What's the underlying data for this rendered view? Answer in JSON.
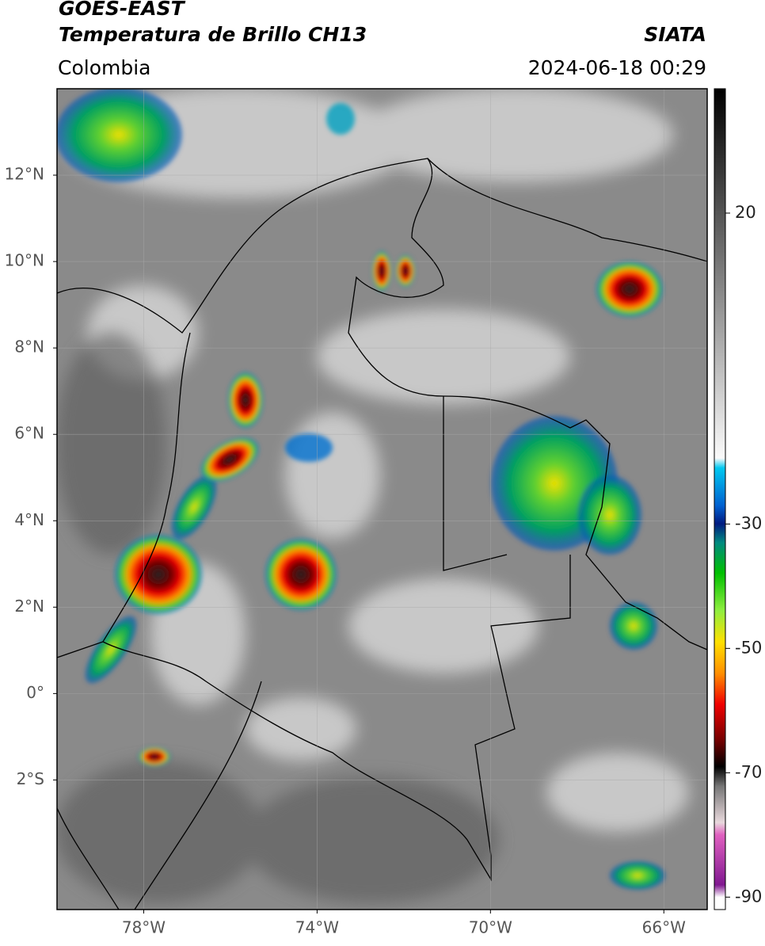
{
  "header": {
    "satellite": "GOES-EAST",
    "product": "Temperatura de Brillo CH13",
    "source": "SIATA",
    "region": "Colombia",
    "datetime": "2024-06-18 00:29"
  },
  "map": {
    "xlim": [
      -80,
      -65
    ],
    "ylim": [
      -5,
      14
    ],
    "xticks": [
      {
        "value": -78,
        "label": "78°W"
      },
      {
        "value": -74,
        "label": "74°W"
      },
      {
        "value": -70,
        "label": "70°W"
      },
      {
        "value": -66,
        "label": "66°W"
      }
    ],
    "yticks": [
      {
        "value": 12,
        "label": "12°N"
      },
      {
        "value": 10,
        "label": "10°N"
      },
      {
        "value": 8,
        "label": "8°N"
      },
      {
        "value": 6,
        "label": "6°N"
      },
      {
        "value": 4,
        "label": "4°N"
      },
      {
        "value": 2,
        "label": "2°N"
      },
      {
        "value": 0,
        "label": "0°"
      },
      {
        "value": -2,
        "label": "2°S"
      }
    ],
    "grid": true
  },
  "colorbar": {
    "lim": [
      -92,
      40
    ],
    "ticks": [
      20,
      -30,
      -50,
      -70,
      -90
    ]
  }
}
